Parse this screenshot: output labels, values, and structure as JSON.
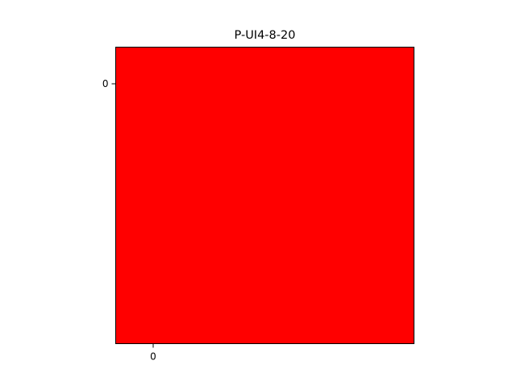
{
  "chart_data": {
    "type": "heatmap",
    "title": "P-UI4-8-20",
    "xlabel": "",
    "ylabel": "",
    "x_tick_labels": [
      "0"
    ],
    "y_tick_labels": [
      "0"
    ],
    "values": [
      [
        0
      ]
    ],
    "cell_color": "#ff0000",
    "frame_color": "#000000",
    "grid": false,
    "legend": "none"
  }
}
